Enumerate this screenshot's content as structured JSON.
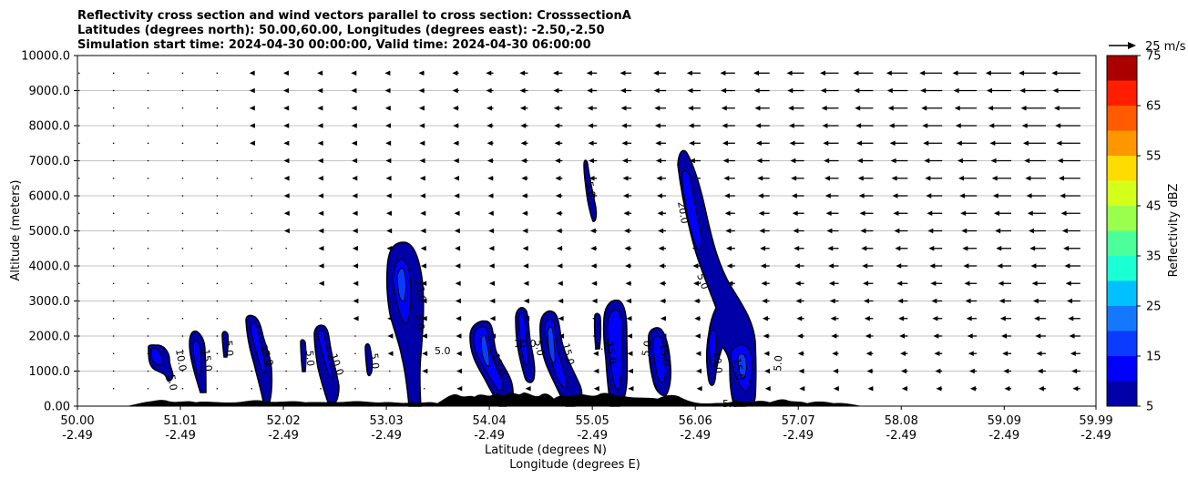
{
  "chart_data": {
    "type": "contour",
    "title_lines": [
      "Reflectivity cross section and wind vectors parallel to cross section: CrosssectionA",
      "Latitudes (degrees north): 50.00,60.00, Longitudes (degrees east): -2.50,-2.50",
      "Simulation start time: 2024-04-30 00:00:00, Valid time: 2024-04-30 06:00:00"
    ],
    "xlabel": "Latitude (degrees N)",
    "xlabel2": "Longitude (degrees E)",
    "ylabel": "Altitude (meters)",
    "xlim": [
      50.0,
      59.99
    ],
    "ylim": [
      0,
      10000
    ],
    "grid": "horizontal",
    "x_ticks": [
      {
        "lat": "50.00",
        "lon": "-2.49",
        "value": 50.0
      },
      {
        "lat": "51.01",
        "lon": "-2.49",
        "value": 51.01
      },
      {
        "lat": "52.02",
        "lon": "-2.49",
        "value": 52.02
      },
      {
        "lat": "53.03",
        "lon": "-2.49",
        "value": 53.03
      },
      {
        "lat": "54.04",
        "lon": "-2.49",
        "value": 54.04
      },
      {
        "lat": "55.05",
        "lon": "-2.49",
        "value": 55.05
      },
      {
        "lat": "56.06",
        "lon": "-2.49",
        "value": 56.06
      },
      {
        "lat": "57.07",
        "lon": "-2.49",
        "value": 57.07
      },
      {
        "lat": "58.08",
        "lon": "-2.49",
        "value": 58.08
      },
      {
        "lat": "59.09",
        "lon": "-2.49",
        "value": 59.09
      },
      {
        "lat": "59.99",
        "lon": "-2.49",
        "value": 59.99
      }
    ],
    "y_ticks": [
      {
        "label": "0.00",
        "value": 0
      },
      {
        "label": "1000.0",
        "value": 1000
      },
      {
        "label": "2000.0",
        "value": 2000
      },
      {
        "label": "3000.0",
        "value": 3000
      },
      {
        "label": "4000.0",
        "value": 4000
      },
      {
        "label": "5000.0",
        "value": 5000
      },
      {
        "label": "6000.0",
        "value": 6000
      },
      {
        "label": "7000.0",
        "value": 7000
      },
      {
        "label": "8000.0",
        "value": 8000
      },
      {
        "label": "9000.0",
        "value": 9000
      },
      {
        "label": "10000.0",
        "value": 10000
      }
    ],
    "colorbar": {
      "label": "Reflectivity dBZ",
      "levels": [
        5,
        10,
        15,
        20,
        25,
        30,
        35,
        40,
        45,
        50,
        55,
        60,
        65,
        70,
        75
      ],
      "tick_labels": [
        "5",
        "15",
        "25",
        "35",
        "45",
        "55",
        "65",
        "75"
      ],
      "colors": [
        "#0000a8",
        "#0000ff",
        "#0a3cff",
        "#1478ff",
        "#00c0ff",
        "#1affd4",
        "#4dff9a",
        "#9aff4d",
        "#d4ff1a",
        "#ffdc00",
        "#ff9600",
        "#ff5a00",
        "#ff1e00",
        "#aa0000"
      ]
    },
    "vector_key": {
      "label": "25 m/s",
      "speed": 25
    },
    "contour_labels": [
      "5.0",
      "10.0",
      "15.0",
      "20.0"
    ],
    "reflectivity_cells": [
      {
        "x": [
          50.7,
          50.93
        ],
        "y": [
          650,
          1750
        ],
        "max_dbz": 15
      },
      {
        "x": [
          51.0,
          51.15
        ],
        "y": [
          400,
          2100
        ],
        "max_dbz": 15
      },
      {
        "x": [
          51.4,
          51.45
        ],
        "y": [
          1400,
          2100
        ],
        "max_dbz": 10
      },
      {
        "x": [
          51.65,
          51.95
        ],
        "y": [
          150,
          2550
        ],
        "max_dbz": 15
      },
      {
        "x": [
          52.15,
          52.2
        ],
        "y": [
          1000,
          1800
        ],
        "max_dbz": 10
      },
      {
        "x": [
          52.35,
          52.55
        ],
        "y": [
          100,
          2300
        ],
        "max_dbz": 15
      },
      {
        "x": [
          52.8,
          52.85
        ],
        "y": [
          800,
          1800
        ],
        "max_dbz": 10
      },
      {
        "x": [
          53.0,
          53.3
        ],
        "y": [
          0,
          4650
        ],
        "max_dbz": 15
      },
      {
        "x": [
          53.85,
          54.25
        ],
        "y": [
          0,
          2400
        ],
        "max_dbz": 15
      },
      {
        "x": [
          54.27,
          54.4
        ],
        "y": [
          700,
          2850
        ],
        "max_dbz": 15
      },
      {
        "x": [
          54.5,
          54.85
        ],
        "y": [
          0,
          2750
        ],
        "max_dbz": 15
      },
      {
        "x": [
          54.95,
          55.05
        ],
        "y": [
          5200,
          7050
        ],
        "max_dbz": 10
      },
      {
        "x": [
          55.0,
          55.3
        ],
        "y": [
          0,
          3000
        ],
        "max_dbz": 15
      },
      {
        "x": [
          55.4,
          55.65
        ],
        "y": [
          0,
          2100
        ],
        "max_dbz": 15
      },
      {
        "x": [
          55.8,
          56.65
        ],
        "y": [
          0,
          7300
        ],
        "max_dbz": 20
      },
      {
        "x": [
          56.1,
          56.2
        ],
        "y": [
          1100,
          2600
        ],
        "max_dbz": 10
      }
    ]
  }
}
